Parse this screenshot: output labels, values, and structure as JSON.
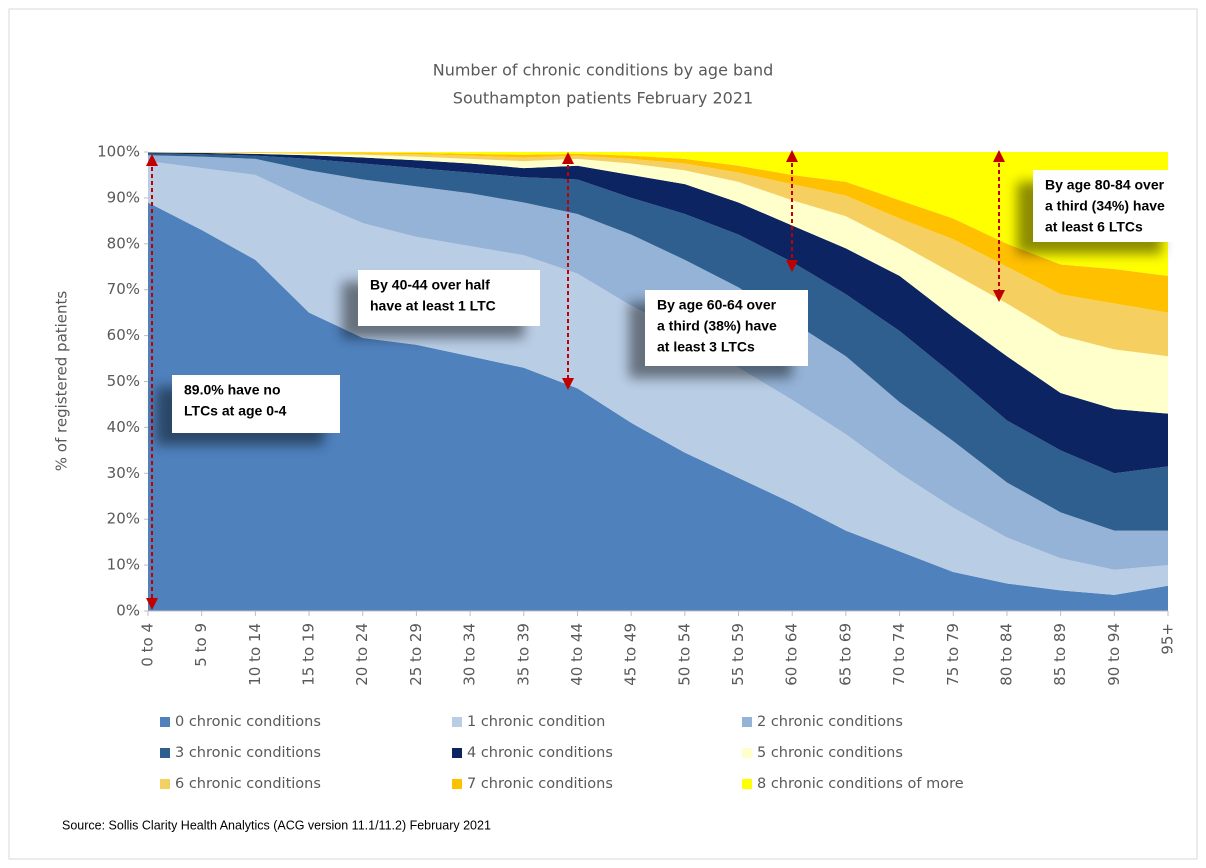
{
  "chart_data": {
    "type": "stacked_area",
    "title": "Number of chronic conditions by age band",
    "subtitle": "Southampton patients February 2021",
    "y_label": "% of registered patients",
    "categories": [
      "0 to 4",
      "5 to 9",
      "10 to 14",
      "15 to 19",
      "20 to 24",
      "25 to 29",
      "30 to 34",
      "35 to 39",
      "40 to 44",
      "45 to 49",
      "50 to 54",
      "55 to 59",
      "60 to 64",
      "65 to 69",
      "70 to 74",
      "75 to 79",
      "80 to 84",
      "85 to 89",
      "90 to 94",
      "95+"
    ],
    "ylim": [
      0,
      100
    ],
    "yticks": [
      {
        "value": 0,
        "label": "0%"
      },
      {
        "value": 10,
        "label": "10%"
      },
      {
        "value": 20,
        "label": "20%"
      },
      {
        "value": 30,
        "label": "30%"
      },
      {
        "value": 40,
        "label": "40%"
      },
      {
        "value": 50,
        "label": "50%"
      },
      {
        "value": 60,
        "label": "60%"
      },
      {
        "value": 70,
        "label": "70%"
      },
      {
        "value": 80,
        "label": "80%"
      },
      {
        "value": 90,
        "label": "90%"
      },
      {
        "value": 100,
        "label": "100%"
      }
    ],
    "series": [
      {
        "name": "0 chronic conditions",
        "color": "#4f81bd",
        "values": [
          89,
          83,
          76.5,
          65,
          59.5,
          58,
          55.5,
          53,
          48.5,
          41,
          34.5,
          29,
          23.5,
          17.5,
          13,
          8.5,
          6,
          4.5,
          3.5,
          5.5
        ]
      },
      {
        "name": "1 chronic condition",
        "color": "#b9cde5",
        "values": [
          9,
          13.5,
          18.5,
          24.5,
          25,
          23.5,
          24,
          24.5,
          25,
          25.5,
          26,
          24,
          22.5,
          21,
          17,
          14,
          10,
          7,
          5.5,
          4.5
        ]
      },
      {
        "name": "2 chronic conditions",
        "color": "#95b3d7",
        "values": [
          1.3,
          2.5,
          3.5,
          6.5,
          9.5,
          11,
          11.5,
          11.5,
          13,
          15.5,
          16,
          17.5,
          17,
          17,
          15.5,
          14.5,
          12,
          10,
          8.5,
          7.5
        ]
      },
      {
        "name": "3 chronic conditions",
        "color": "#2e5f8f",
        "values": [
          0.4,
          0.5,
          0.7,
          2.5,
          3.5,
          4,
          4.5,
          5.5,
          7.5,
          8,
          10,
          11.5,
          13,
          13.5,
          15.5,
          14.5,
          13.5,
          13.5,
          12.5,
          14
        ]
      },
      {
        "name": "4 chronic conditions",
        "color": "#0c2461",
        "values": [
          0.2,
          0.3,
          0.4,
          0.8,
          1.3,
          1.7,
          2,
          2,
          3,
          5,
          6.5,
          7,
          8,
          10,
          12,
          12.5,
          14,
          12.5,
          14,
          11.5
        ]
      },
      {
        "name": "5 chronic conditions",
        "color": "#ffffcc",
        "values": [
          0.1,
          0.1,
          0.2,
          0.3,
          0.6,
          0.8,
          1,
          1.5,
          1.5,
          2.5,
          3,
          4.5,
          5.5,
          7,
          7,
          9.5,
          11.5,
          12.5,
          13,
          12.5
        ]
      },
      {
        "name": "6 chronic conditions",
        "color": "#f5d060",
        "values": [
          0,
          0.1,
          0.1,
          0.2,
          0.3,
          0.5,
          0.7,
          0.8,
          0.7,
          1,
          1.5,
          2,
          3.5,
          4.5,
          5.5,
          7.5,
          8,
          9,
          10,
          9.5
        ]
      },
      {
        "name": "7 chronic conditions",
        "color": "#ffc000",
        "values": [
          0,
          0,
          0.1,
          0.1,
          0.2,
          0.3,
          0.4,
          0.6,
          0.4,
          0.7,
          1,
          1.5,
          2,
          3,
          4,
          4.5,
          5,
          6.5,
          7.5,
          8
        ]
      },
      {
        "name": "8 chronic conditions of more",
        "color": "#ffff00",
        "values": [
          0,
          0,
          0,
          0.1,
          0.1,
          0.2,
          0.4,
          0.6,
          0.4,
          0.8,
          1.5,
          3,
          5,
          6.5,
          10.5,
          14.5,
          20,
          24.5,
          25.5,
          27
        ]
      }
    ],
    "annotations": [
      {
        "lines": [
          "89.0% have no",
          "LTCs at age 0-4"
        ]
      },
      {
        "lines": [
          "By 40-44 over half",
          "have at least 1 LTC"
        ]
      },
      {
        "lines": [
          "By age 60-64 over",
          "a third (38%) have",
          "at least 3 LTCs"
        ]
      },
      {
        "lines": [
          "By age 80-84 over",
          "a third (34%) have",
          "at least 6 LTCs"
        ]
      }
    ],
    "source": "Source: Sollis Clarity Health Analytics (ACG version 11.1/11.2) February 2021"
  }
}
